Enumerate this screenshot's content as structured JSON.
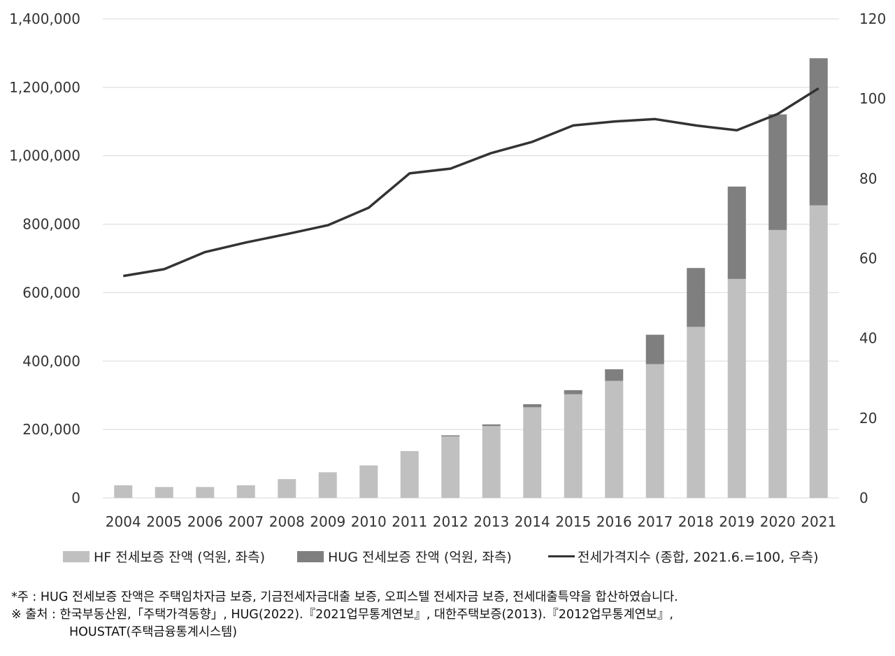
{
  "chart_data": {
    "type": "bar",
    "categories": [
      "2004",
      "2005",
      "2006",
      "2007",
      "2008",
      "2009",
      "2010",
      "2011",
      "2012",
      "2013",
      "2014",
      "2015",
      "2016",
      "2017",
      "2018",
      "2019",
      "2020",
      "2021"
    ],
    "series": [
      {
        "name": "HF 전세보증 잔액 (억원, 좌측)",
        "type": "bar",
        "axis": "left",
        "color": "#c0c0c0",
        "values": [
          37000,
          32000,
          32000,
          37000,
          55000,
          75000,
          95000,
          137000,
          180000,
          210000,
          265000,
          303000,
          342000,
          391000,
          500000,
          640000,
          783000,
          855000
        ]
      },
      {
        "name": "HUG 전세보증 잔액 (억원, 좌측)",
        "type": "bar",
        "axis": "left",
        "stacked": true,
        "color": "#7f7f7f",
        "values": [
          0,
          0,
          0,
          0,
          0,
          0,
          0,
          0,
          3000,
          5000,
          9000,
          12000,
          34000,
          86000,
          172000,
          270000,
          338000,
          430000
        ]
      },
      {
        "name": "전세가격지수 (종합, 2021.6.=100, 우측)",
        "type": "line",
        "axis": "right",
        "color": "#333333",
        "values": [
          55.6,
          57.3,
          61.6,
          64.0,
          66.1,
          68.3,
          72.7,
          81.3,
          82.5,
          86.4,
          89.2,
          93.3,
          94.3,
          94.9,
          93.3,
          92.1,
          96.2,
          102.6
        ]
      }
    ],
    "y_left": {
      "min": 0,
      "max": 1400000,
      "ticks": [
        0,
        200000,
        400000,
        600000,
        800000,
        1000000,
        1200000,
        1400000
      ],
      "tick_labels": [
        "0",
        "200,000",
        "400,000",
        "600,000",
        "800,000",
        "1,000,000",
        "1,200,000",
        "1,400,000"
      ]
    },
    "y_right": {
      "min": 0,
      "max": 120,
      "ticks": [
        0,
        20,
        40,
        60,
        80,
        100,
        120
      ],
      "tick_labels": [
        "0",
        "20",
        "40",
        "60",
        "80",
        "100",
        "120"
      ]
    },
    "grid": true,
    "legend_position": "bottom"
  },
  "legend": [
    {
      "label": "HF 전세보증 잔액 (억원, 좌측)",
      "color": "#c0c0c0"
    },
    {
      "label": "HUG 전세보증 잔액 (억원, 좌측)",
      "color": "#7f7f7f"
    },
    {
      "label": "전세가격지수 (종합, 2021.6.=100, 우측)",
      "color": "#333333"
    }
  ],
  "notes": {
    "line1": "*주 : HUG 전세보증 잔액은 주택임차자금 보증, 기금전세자금대출 보증, 오피스텔 전세자금 보증, 전세대출특약을 합산하였습니다.",
    "line2": "※ 출처 : 한국부동산원,「주택가격동향」, HUG(2022).『2021업무통계연보』, 대한주택보증(2013).『2012업무통계연보』,",
    "line3": "HOUSTAT(주택금융통계시스템)"
  }
}
